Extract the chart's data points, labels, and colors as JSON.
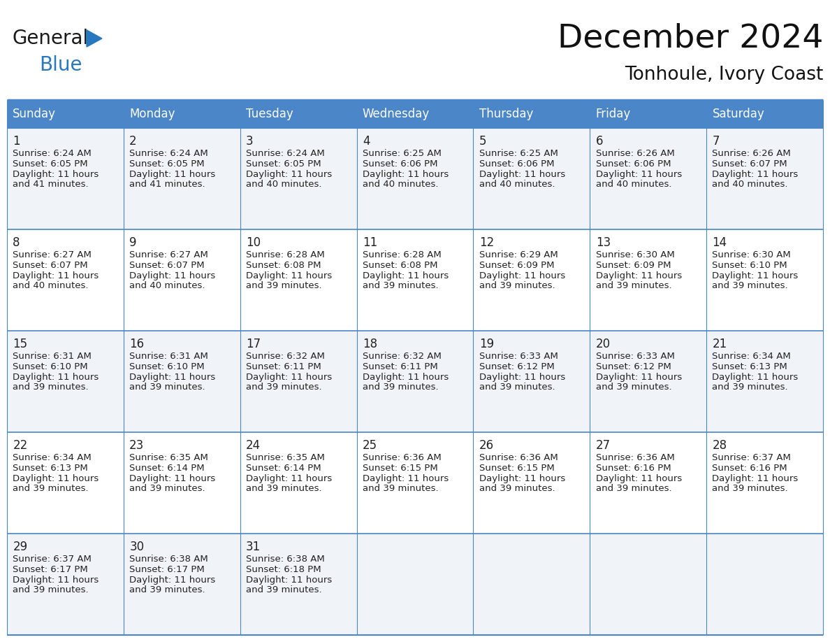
{
  "title": "December 2024",
  "subtitle": "Tonhoule, Ivory Coast",
  "header_color": "#4a86c8",
  "header_text_color": "#FFFFFF",
  "cell_bg_odd": "#f0f4f8",
  "cell_bg_even": "#FFFFFF",
  "border_color": "#4a86c8",
  "text_color": "#222222",
  "day_headers": [
    "Sunday",
    "Monday",
    "Tuesday",
    "Wednesday",
    "Thursday",
    "Friday",
    "Saturday"
  ],
  "weeks": [
    [
      {
        "day": "1",
        "sunrise": "6:24 AM",
        "sunset": "6:05 PM",
        "daylight": "11 hours",
        "daylight2": "and 41 minutes."
      },
      {
        "day": "2",
        "sunrise": "6:24 AM",
        "sunset": "6:05 PM",
        "daylight": "11 hours",
        "daylight2": "and 41 minutes."
      },
      {
        "day": "3",
        "sunrise": "6:24 AM",
        "sunset": "6:05 PM",
        "daylight": "11 hours",
        "daylight2": "and 40 minutes."
      },
      {
        "day": "4",
        "sunrise": "6:25 AM",
        "sunset": "6:06 PM",
        "daylight": "11 hours",
        "daylight2": "and 40 minutes."
      },
      {
        "day": "5",
        "sunrise": "6:25 AM",
        "sunset": "6:06 PM",
        "daylight": "11 hours",
        "daylight2": "and 40 minutes."
      },
      {
        "day": "6",
        "sunrise": "6:26 AM",
        "sunset": "6:06 PM",
        "daylight": "11 hours",
        "daylight2": "and 40 minutes."
      },
      {
        "day": "7",
        "sunrise": "6:26 AM",
        "sunset": "6:07 PM",
        "daylight": "11 hours",
        "daylight2": "and 40 minutes."
      }
    ],
    [
      {
        "day": "8",
        "sunrise": "6:27 AM",
        "sunset": "6:07 PM",
        "daylight": "11 hours",
        "daylight2": "and 40 minutes."
      },
      {
        "day": "9",
        "sunrise": "6:27 AM",
        "sunset": "6:07 PM",
        "daylight": "11 hours",
        "daylight2": "and 40 minutes."
      },
      {
        "day": "10",
        "sunrise": "6:28 AM",
        "sunset": "6:08 PM",
        "daylight": "11 hours",
        "daylight2": "and 39 minutes."
      },
      {
        "day": "11",
        "sunrise": "6:28 AM",
        "sunset": "6:08 PM",
        "daylight": "11 hours",
        "daylight2": "and 39 minutes."
      },
      {
        "day": "12",
        "sunrise": "6:29 AM",
        "sunset": "6:09 PM",
        "daylight": "11 hours",
        "daylight2": "and 39 minutes."
      },
      {
        "day": "13",
        "sunrise": "6:30 AM",
        "sunset": "6:09 PM",
        "daylight": "11 hours",
        "daylight2": "and 39 minutes."
      },
      {
        "day": "14",
        "sunrise": "6:30 AM",
        "sunset": "6:10 PM",
        "daylight": "11 hours",
        "daylight2": "and 39 minutes."
      }
    ],
    [
      {
        "day": "15",
        "sunrise": "6:31 AM",
        "sunset": "6:10 PM",
        "daylight": "11 hours",
        "daylight2": "and 39 minutes."
      },
      {
        "day": "16",
        "sunrise": "6:31 AM",
        "sunset": "6:10 PM",
        "daylight": "11 hours",
        "daylight2": "and 39 minutes."
      },
      {
        "day": "17",
        "sunrise": "6:32 AM",
        "sunset": "6:11 PM",
        "daylight": "11 hours",
        "daylight2": "and 39 minutes."
      },
      {
        "day": "18",
        "sunrise": "6:32 AM",
        "sunset": "6:11 PM",
        "daylight": "11 hours",
        "daylight2": "and 39 minutes."
      },
      {
        "day": "19",
        "sunrise": "6:33 AM",
        "sunset": "6:12 PM",
        "daylight": "11 hours",
        "daylight2": "and 39 minutes."
      },
      {
        "day": "20",
        "sunrise": "6:33 AM",
        "sunset": "6:12 PM",
        "daylight": "11 hours",
        "daylight2": "and 39 minutes."
      },
      {
        "day": "21",
        "sunrise": "6:34 AM",
        "sunset": "6:13 PM",
        "daylight": "11 hours",
        "daylight2": "and 39 minutes."
      }
    ],
    [
      {
        "day": "22",
        "sunrise": "6:34 AM",
        "sunset": "6:13 PM",
        "daylight": "11 hours",
        "daylight2": "and 39 minutes."
      },
      {
        "day": "23",
        "sunrise": "6:35 AM",
        "sunset": "6:14 PM",
        "daylight": "11 hours",
        "daylight2": "and 39 minutes."
      },
      {
        "day": "24",
        "sunrise": "6:35 AM",
        "sunset": "6:14 PM",
        "daylight": "11 hours",
        "daylight2": "and 39 minutes."
      },
      {
        "day": "25",
        "sunrise": "6:36 AM",
        "sunset": "6:15 PM",
        "daylight": "11 hours",
        "daylight2": "and 39 minutes."
      },
      {
        "day": "26",
        "sunrise": "6:36 AM",
        "sunset": "6:15 PM",
        "daylight": "11 hours",
        "daylight2": "and 39 minutes."
      },
      {
        "day": "27",
        "sunrise": "6:36 AM",
        "sunset": "6:16 PM",
        "daylight": "11 hours",
        "daylight2": "and 39 minutes."
      },
      {
        "day": "28",
        "sunrise": "6:37 AM",
        "sunset": "6:16 PM",
        "daylight": "11 hours",
        "daylight2": "and 39 minutes."
      }
    ],
    [
      {
        "day": "29",
        "sunrise": "6:37 AM",
        "sunset": "6:17 PM",
        "daylight": "11 hours",
        "daylight2": "and 39 minutes."
      },
      {
        "day": "30",
        "sunrise": "6:38 AM",
        "sunset": "6:17 PM",
        "daylight": "11 hours",
        "daylight2": "and 39 minutes."
      },
      {
        "day": "31",
        "sunrise": "6:38 AM",
        "sunset": "6:18 PM",
        "daylight": "11 hours",
        "daylight2": "and 39 minutes."
      },
      null,
      null,
      null,
      null
    ]
  ],
  "logo_general_color": "#1a1a1a",
  "logo_blue_color": "#2878c0",
  "logo_triangle_color": "#2878c0",
  "title_fontsize": 34,
  "subtitle_fontsize": 19,
  "header_fontsize": 12,
  "day_num_fontsize": 12,
  "cell_text_fontsize": 9.5
}
